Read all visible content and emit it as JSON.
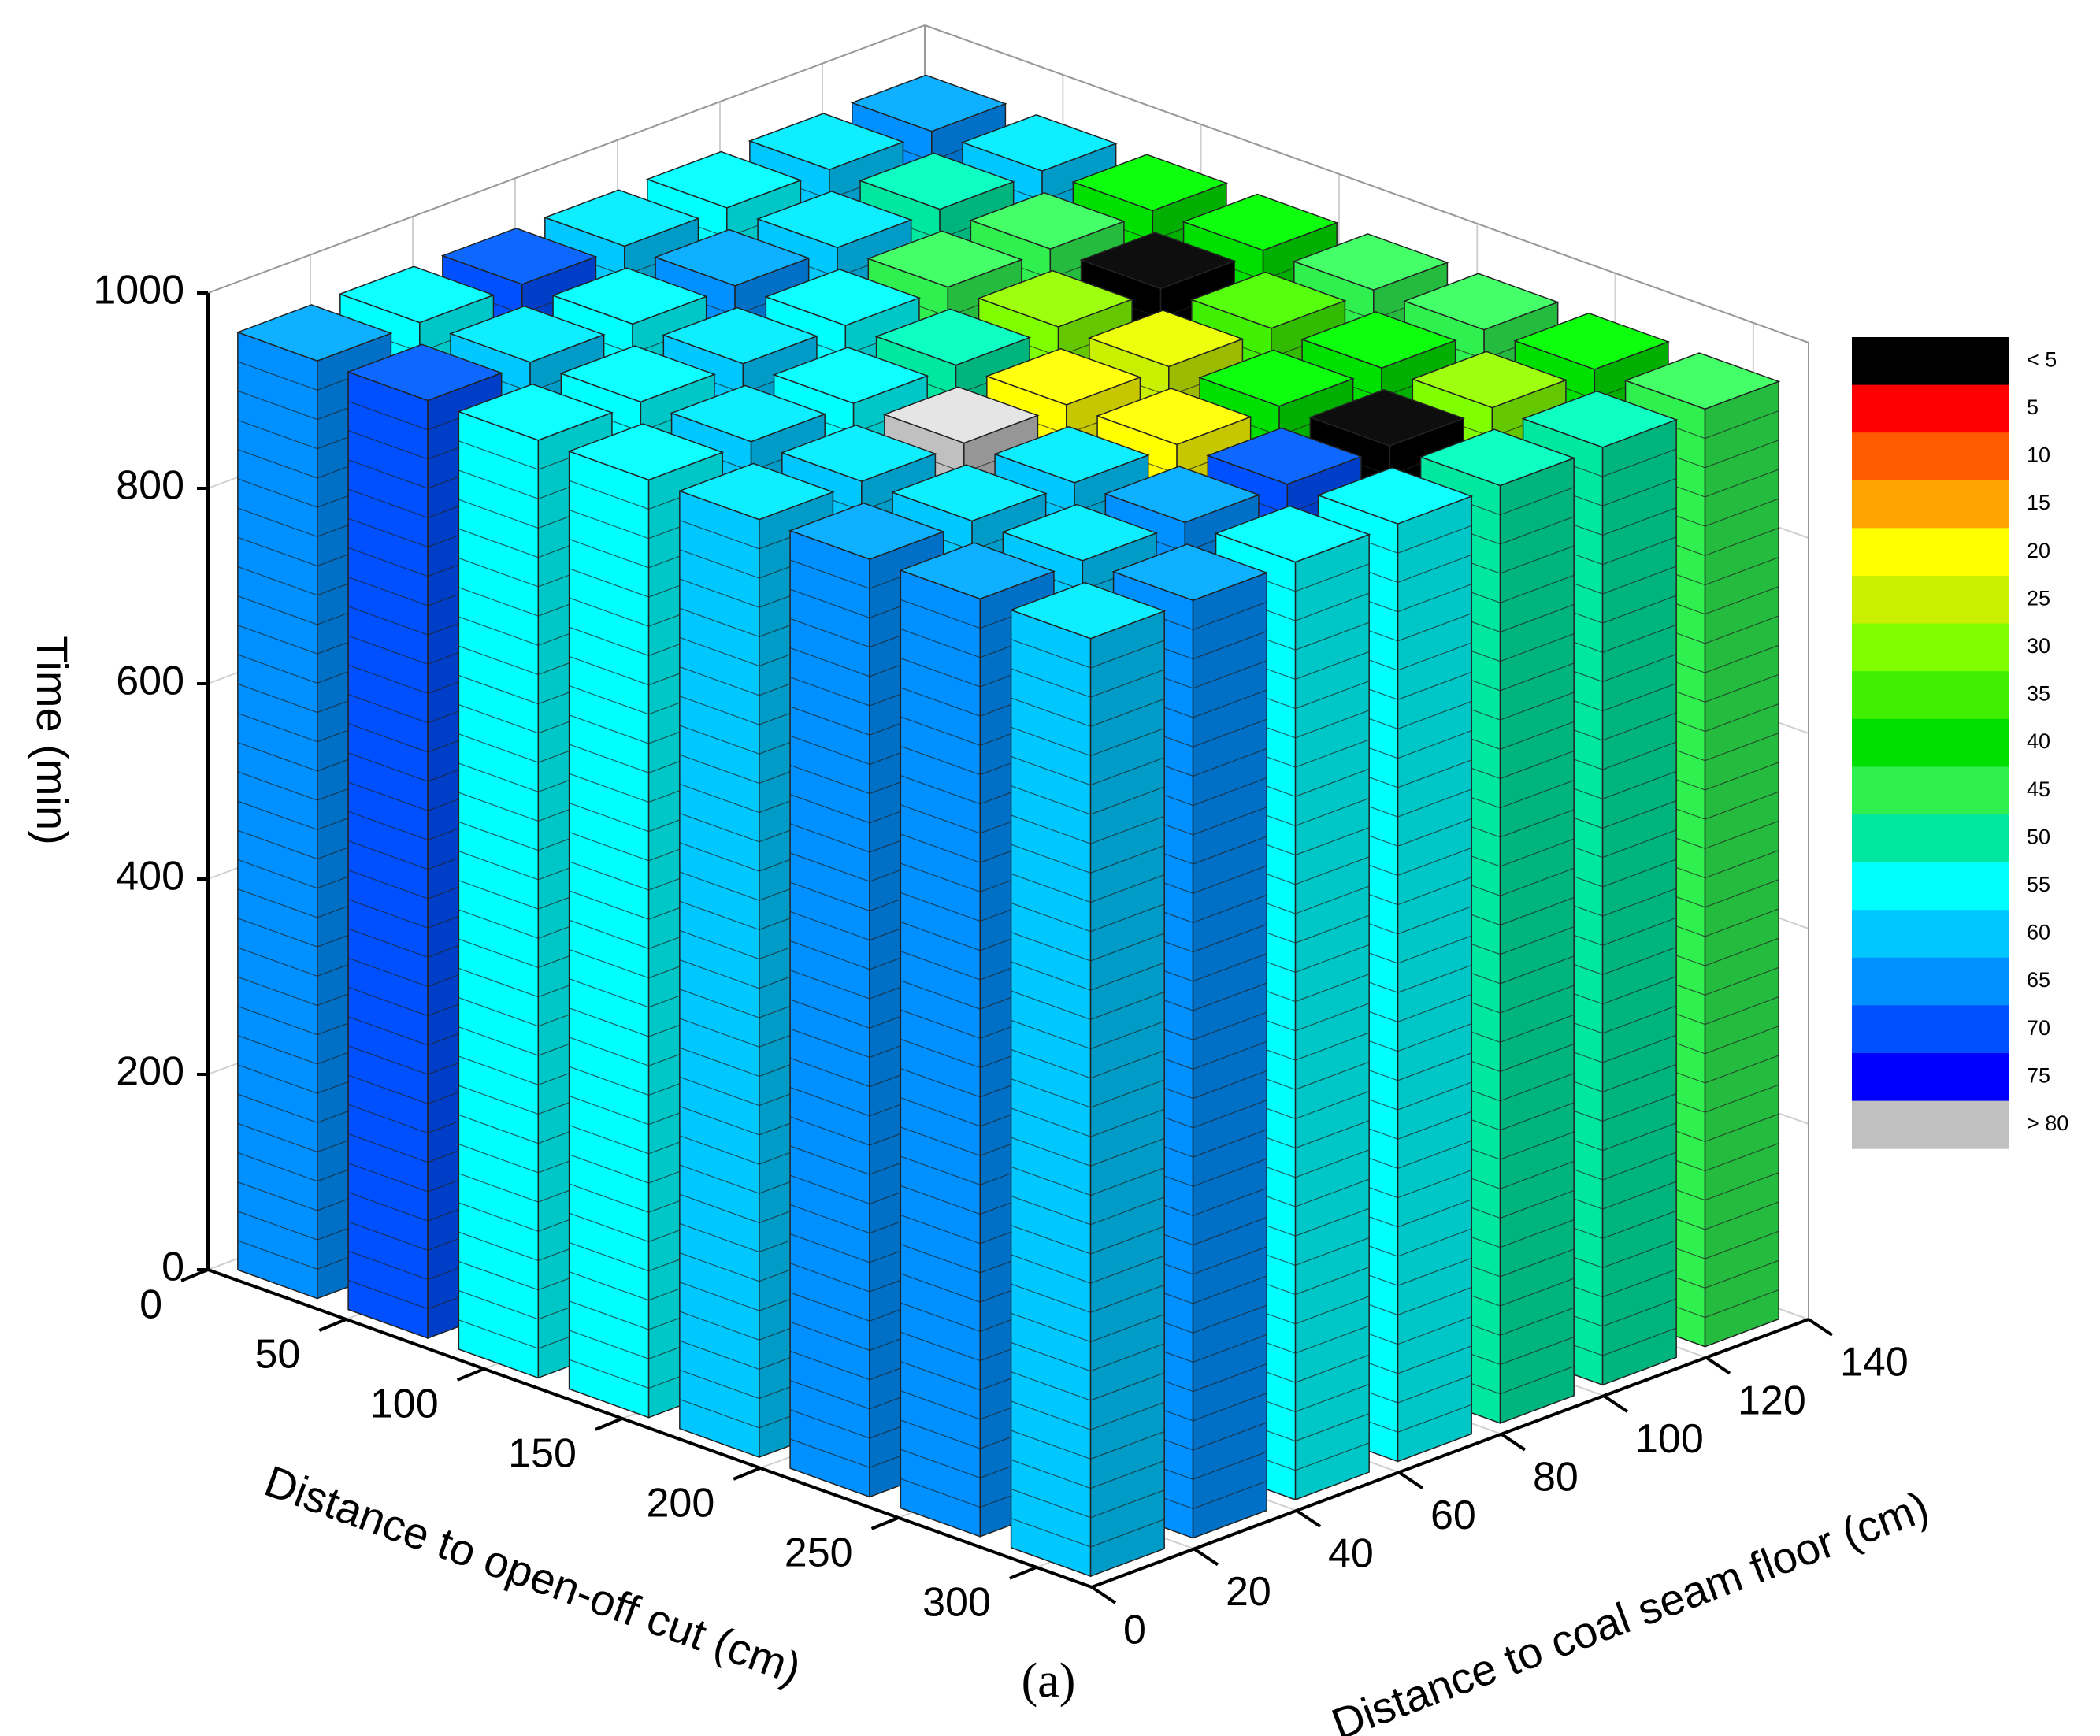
{
  "chart_data": {
    "type": "bar3d",
    "caption": "(a)",
    "x_label": "Distance to open-off cut (cm)",
    "y_label": "Distance to coal seam floor (cm)",
    "z_label": "Time (min)",
    "x": [
      20,
      60,
      100,
      140,
      180,
      220,
      260,
      300
    ],
    "y": [
      10,
      30,
      50,
      70,
      90,
      110,
      130
    ],
    "xlim": [
      0,
      320
    ],
    "ylim": [
      0,
      140
    ],
    "zlim": [
      0,
      1000
    ],
    "xticks": [
      0,
      50,
      100,
      150,
      200,
      250,
      300
    ],
    "yticks": [
      0,
      20,
      40,
      60,
      80,
      100,
      120,
      140
    ],
    "zticks": [
      0,
      200,
      400,
      600,
      800,
      1000
    ],
    "heights": [
      [
        960,
        960,
        960,
        960,
        960,
        960,
        960,
        960
      ],
      [
        960,
        960,
        960,
        960,
        960,
        960,
        960,
        960
      ],
      [
        960,
        960,
        960,
        960,
        960,
        960,
        960,
        960
      ],
      [
        960,
        960,
        960,
        960,
        960,
        960,
        960,
        960
      ],
      [
        960,
        960,
        960,
        960,
        960,
        960,
        960,
        960
      ],
      [
        960,
        960,
        960,
        960,
        960,
        960,
        960,
        960
      ],
      [
        960,
        960,
        960,
        960,
        960,
        960,
        960,
        960
      ]
    ],
    "values": [
      [
        65,
        70,
        55,
        55,
        60,
        65,
        65,
        60
      ],
      [
        55,
        60,
        55,
        60,
        60,
        60,
        60,
        65
      ],
      [
        70,
        55,
        60,
        55,
        85,
        60,
        65,
        55
      ],
      [
        60,
        65,
        55,
        50,
        20,
        20,
        70,
        55
      ],
      [
        55,
        60,
        45,
        30,
        25,
        40,
        0,
        50
      ],
      [
        60,
        50,
        45,
        0,
        35,
        40,
        30,
        50
      ],
      [
        65,
        60,
        40,
        40,
        45,
        45,
        40,
        45
      ]
    ],
    "thresholds": [
      5,
      10,
      15,
      20,
      25,
      30,
      35,
      40,
      45,
      50,
      55,
      60,
      65,
      70,
      75,
      80
    ],
    "legend": {
      "labels": [
        "< 5",
        5,
        10,
        15,
        20,
        25,
        30,
        35,
        40,
        45,
        50,
        55,
        60,
        65,
        70,
        75,
        "> 80"
      ],
      "colors": [
        "#000000",
        "#ff0000",
        "#ff5a00",
        "#ffa500",
        "#ffff00",
        "#c8f000",
        "#80ff00",
        "#40f000",
        "#00e000",
        "#30f050",
        "#00e8a0",
        "#00ffff",
        "#00c8ff",
        "#0090ff",
        "#0050ff",
        "#0000ff",
        "#c0c0c0"
      ]
    },
    "grid": true
  }
}
